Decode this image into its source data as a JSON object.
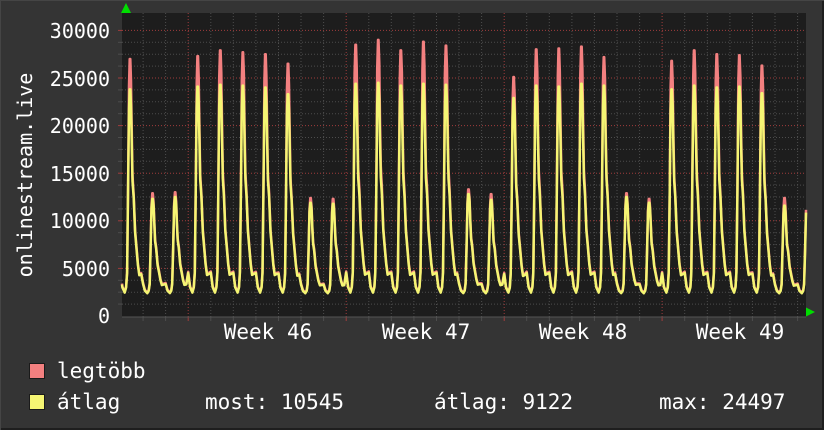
{
  "axis_title": "onlinestream.live",
  "y_axis": {
    "ticks": [
      "30000",
      "25000",
      "20000",
      "15000",
      "10000",
      "5000",
      "0"
    ]
  },
  "x_axis": {
    "weeks": [
      "Week 46",
      "Week 47",
      "Week 48",
      "Week 49"
    ]
  },
  "legend": {
    "max_label": "legtöbb",
    "avg_label": "átlag",
    "max_color": "#f38080",
    "avg_color": "#f5f573"
  },
  "stats": {
    "most": "most: 10545",
    "atlag": "átlag: 9122",
    "max": "max: 24497"
  },
  "colors": {
    "outer_bg": "#343434",
    "plot_bg": "#1d1d1d",
    "grid_minor": "#4d4d4d",
    "grid_major": "#a03c3c",
    "series_max": "#f38080",
    "series_avg": "#f5f573",
    "arrow": "#00dd00",
    "text": "#ffffff",
    "axis_edge": "#555555"
  },
  "chart_data": {
    "type": "line",
    "title": "onlinestream.live",
    "ylabel": "",
    "xlabel": "",
    "ylim": [
      0,
      30000
    ],
    "y_major_step": 5000,
    "y_minor_step": 1250,
    "grid": true,
    "legend_position": "bottom-left",
    "x_week_labels": [
      "Week 46",
      "Week 47",
      "Week 48",
      "Week 49"
    ],
    "series": [
      {
        "name": "legtöbb",
        "role": "daily-max",
        "color": "#f38080"
      },
      {
        "name": "átlag",
        "role": "daily-avg",
        "color": "#f5f573"
      }
    ],
    "summary": {
      "most": 10545,
      "atlag": 9122,
      "max": 24497
    },
    "base_trough": 2350,
    "days": [
      {
        "day": "Fri",
        "max": 27000,
        "avg": 23800
      },
      {
        "day": "Sat",
        "max": 12900,
        "avg": 12300
      },
      {
        "day": "Sun",
        "max": 13000,
        "avg": 12500
      },
      {
        "day": "Mon",
        "max": 27300,
        "avg": 24100
      },
      {
        "day": "Tue",
        "max": 27900,
        "avg": 24300
      },
      {
        "day": "Wed",
        "max": 27700,
        "avg": 24200
      },
      {
        "day": "Thu",
        "max": 27500,
        "avg": 24000
      },
      {
        "day": "Fri",
        "max": 26500,
        "avg": 23300
      },
      {
        "day": "Sat",
        "max": 12400,
        "avg": 11900
      },
      {
        "day": "Sun",
        "max": 12300,
        "avg": 11800
      },
      {
        "day": "Mon",
        "max": 28500,
        "avg": 24400
      },
      {
        "day": "Tue",
        "max": 29000,
        "avg": 24497
      },
      {
        "day": "Wed",
        "max": 27900,
        "avg": 24200
      },
      {
        "day": "Thu",
        "max": 28800,
        "avg": 24400
      },
      {
        "day": "Fri",
        "max": 28400,
        "avg": 24300
      },
      {
        "day": "Sat",
        "max": 13300,
        "avg": 12800
      },
      {
        "day": "Sun",
        "max": 12800,
        "avg": 12200
      },
      {
        "day": "Mon",
        "max": 25100,
        "avg": 22900
      },
      {
        "day": "Tue",
        "max": 28000,
        "avg": 24200
      },
      {
        "day": "Wed",
        "max": 28100,
        "avg": 24100
      },
      {
        "day": "Thu",
        "max": 28300,
        "avg": 24400
      },
      {
        "day": "Fri",
        "max": 27200,
        "avg": 24200
      },
      {
        "day": "Sat",
        "max": 12900,
        "avg": 12500
      },
      {
        "day": "Sun",
        "max": 12300,
        "avg": 11900
      },
      {
        "day": "Mon",
        "max": 26800,
        "avg": 23800
      },
      {
        "day": "Tue",
        "max": 27900,
        "avg": 24200
      },
      {
        "day": "Wed",
        "max": 27500,
        "avg": 24000
      },
      {
        "day": "Thu",
        "max": 27400,
        "avg": 24100
      },
      {
        "day": "Fri",
        "max": 26300,
        "avg": 23400
      },
      {
        "day": "Sat",
        "max": 12400,
        "avg": 11600
      },
      {
        "day": "Sun",
        "max": 12400,
        "avg": 11900
      }
    ],
    "day_profile": [
      [
        0,
        0.1
      ],
      [
        2,
        0.03
      ],
      [
        4.5,
        0.005
      ],
      [
        6,
        0.03
      ],
      [
        7,
        0.1
      ],
      [
        8,
        0.48
      ],
      [
        9,
        0.9
      ],
      [
        9.8,
        1.0
      ],
      [
        10.4,
        1.0
      ],
      [
        11.2,
        0.92
      ],
      [
        12,
        0.72
      ],
      [
        12.8,
        0.55
      ],
      [
        14,
        0.47
      ],
      [
        15.5,
        0.3
      ],
      [
        17,
        0.22
      ],
      [
        18.5,
        0.14
      ],
      [
        20,
        0.09
      ],
      [
        22,
        0.095
      ]
    ]
  }
}
